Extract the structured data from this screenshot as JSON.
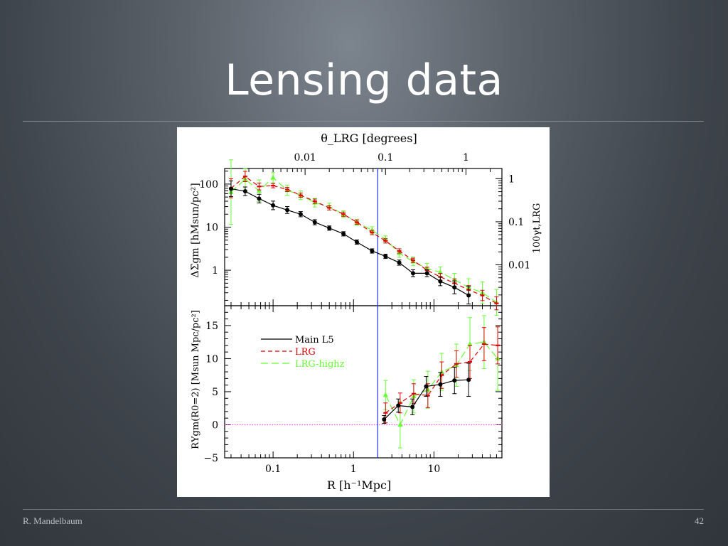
{
  "slide": {
    "title": "Lensing data",
    "author": "R. Mandelbaum",
    "page_number": "42"
  },
  "colors": {
    "main": "#000000",
    "lrg": "#dd0000",
    "highz": "#66ff33",
    "vline": "#3344ff",
    "zero_line": "#ff44ff"
  },
  "chart_data": [
    {
      "type": "line",
      "panel": "top",
      "x_scale": "log",
      "y_scale": "log",
      "xlim": [
        0.025,
        70
      ],
      "ylim": [
        0.15,
        230
      ],
      "top_axis_label": "θ_LRG [degrees]",
      "top_axis_ticks": [
        {
          "label": "0.01",
          "r": 0.25
        },
        {
          "label": "0.1",
          "r": 2.5
        },
        {
          "label": "1",
          "r": 25
        }
      ],
      "ylabel": "ΔΣgm [hMsun/pc²]",
      "ytick_labels": [
        "100",
        "10",
        "1"
      ],
      "right_axis_label": "100γt,LRG",
      "right_tick_labels": [
        "1",
        "0.1",
        "0.01"
      ],
      "vertical_line_x": 2,
      "series": [
        {
          "name": "Main L5",
          "x": [
            0.03,
            0.045,
            0.067,
            0.1,
            0.15,
            0.22,
            0.33,
            0.5,
            0.75,
            1.1,
            1.7,
            2.5,
            3.7,
            5.5,
            8.2,
            12,
            18,
            27
          ],
          "y": [
            78,
            68,
            46,
            32,
            25,
            20,
            13,
            9.5,
            7,
            4.5,
            2.8,
            2.1,
            1.5,
            0.85,
            0.85,
            0.55,
            0.4,
            0.26
          ],
          "err": [
            0.18,
            0.1,
            0.1,
            0.1,
            0.08,
            0.06,
            0.06,
            0.05,
            0.05,
            0.05,
            0.05,
            0.05,
            0.06,
            0.08,
            0.08,
            0.1,
            0.15,
            0.2
          ]
        },
        {
          "name": "LRG",
          "x": [
            0.03,
            0.045,
            0.067,
            0.1,
            0.15,
            0.22,
            0.33,
            0.5,
            0.75,
            1.1,
            1.7,
            2.5,
            3.7,
            5.5,
            8.2,
            12,
            18,
            27,
            40,
            60
          ],
          "y": [
            80,
            150,
            88,
            92,
            75,
            55,
            40,
            28,
            20,
            13,
            7.5,
            4.8,
            2.8,
            1.7,
            1.0,
            0.7,
            0.5,
            0.35,
            0.26,
            0.17
          ],
          "err": [
            0.22,
            0.12,
            0.08,
            0.05,
            0.05,
            0.05,
            0.05,
            0.05,
            0.05,
            0.05,
            0.05,
            0.05,
            0.05,
            0.05,
            0.07,
            0.08,
            0.1,
            0.1,
            0.12,
            0.15
          ]
        },
        {
          "name": "LRG-highz",
          "x": [
            0.03,
            0.045,
            0.067,
            0.1,
            0.15,
            0.22,
            0.33,
            0.5,
            0.75,
            1.1,
            1.7,
            2.5,
            3.7,
            5.5,
            8.2,
            12,
            18,
            27,
            40,
            60
          ],
          "y": [
            65,
            130,
            70,
            140,
            72,
            55,
            37,
            30,
            20,
            13,
            8.5,
            5.2,
            2.5,
            1.6,
            1.1,
            0.9,
            0.6,
            0.4,
            0.3,
            0.18
          ],
          "err": [
            0.75,
            0.25,
            0.25,
            0.12,
            0.12,
            0.1,
            0.1,
            0.08,
            0.08,
            0.07,
            0.08,
            0.08,
            0.1,
            0.1,
            0.12,
            0.12,
            0.15,
            0.2,
            0.25,
            0.3
          ]
        }
      ]
    },
    {
      "type": "line",
      "panel": "bottom",
      "x_scale": "log",
      "xlim": [
        0.025,
        70
      ],
      "ylim": [
        -5,
        18
      ],
      "xlabel": "R [h⁻¹Mpc]",
      "ylabel": "RΥgm(R0=2) [Msun Mpc/pc²]",
      "xtick_labels": [
        "0.1",
        "1",
        "10"
      ],
      "ytick_labels": [
        "15",
        "10",
        "5",
        "0",
        "−5"
      ],
      "zero_line": 0,
      "vertical_line_x": 2,
      "legend_position": "top-left",
      "series": [
        {
          "name": "Main L5",
          "x": [
            2.4,
            3.6,
            5.4,
            8.0,
            12,
            18,
            27
          ],
          "y": [
            0.8,
            2.9,
            2.7,
            5.8,
            6.1,
            6.7,
            6.8
          ],
          "err": [
            0.6,
            1.0,
            1.2,
            1.5,
            1.8,
            2.0,
            2.5
          ]
        },
        {
          "name": "LRG",
          "x": [
            2.5,
            3.8,
            5.6,
            8.4,
            12.5,
            19,
            28,
            42,
            62
          ],
          "y": [
            1.8,
            3.3,
            4.7,
            4.4,
            7.5,
            9.2,
            9.5,
            12.2,
            12.0
          ],
          "err": [
            1.5,
            1.5,
            1.5,
            1.8,
            2.0,
            2.0,
            2.5,
            2.5,
            2.8
          ]
        },
        {
          "name": "LRG-highz",
          "x": [
            2.5,
            3.8,
            5.6,
            8.4,
            12.5,
            19,
            28,
            42,
            62
          ],
          "y": [
            4.5,
            0.0,
            4.3,
            5.3,
            8.0,
            9.0,
            12.2,
            12.5,
            10.0
          ],
          "err": [
            2.2,
            3.5,
            2.5,
            2.8,
            2.8,
            3.2,
            4.0,
            4.0,
            4.8
          ]
        }
      ]
    }
  ]
}
